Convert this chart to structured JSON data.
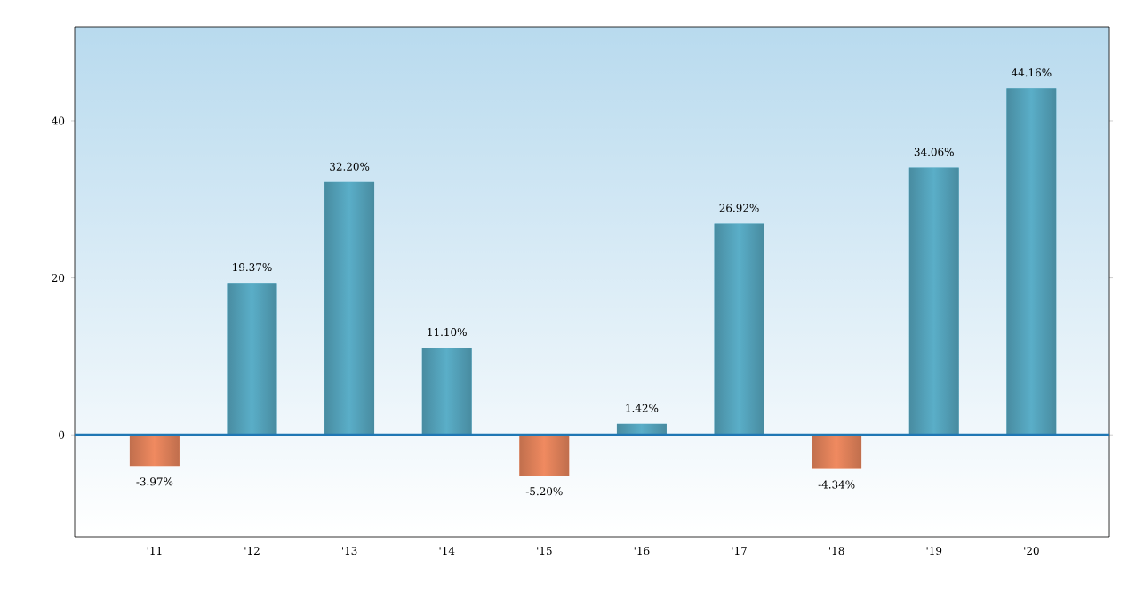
{
  "chart_data": {
    "type": "bar",
    "categories": [
      "'11",
      "'12",
      "'13",
      "'14",
      "'15",
      "'16",
      "'17",
      "'18",
      "'19",
      "'20"
    ],
    "values": [
      -3.97,
      19.37,
      32.2,
      11.1,
      -5.2,
      1.42,
      26.92,
      -4.34,
      34.06,
      44.16
    ],
    "value_labels": [
      "-3.97%",
      "19.37%",
      "32.20%",
      "11.10%",
      "-5.20%",
      "1.42%",
      "26.92%",
      "-4.34%",
      "34.06%",
      "44.16%"
    ],
    "colors": [
      "#f08a60",
      "#5aaec8",
      "#5aaec8",
      "#5aaec8",
      "#f08a60",
      "#5aaec8",
      "#5aaec8",
      "#f08a60",
      "#5aaec8",
      "#5aaec8"
    ],
    "ylim": [
      -13,
      52
    ],
    "yticks": [
      0,
      20,
      40
    ],
    "ref_lines": [
      {
        "axis": "y",
        "value": 0,
        "color": "#1f77b4"
      }
    ],
    "grid": false
  }
}
